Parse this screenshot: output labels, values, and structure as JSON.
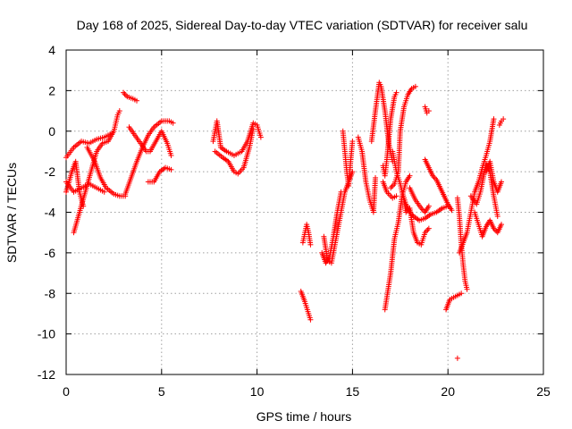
{
  "chart_data": {
    "type": "scatter",
    "title": "Day 168 of 2025, Sidereal Day-to-day VTEC variation (SDTVAR) for receiver salu",
    "xlabel": "GPS time / hours",
    "ylabel": "SDTVAR / TECUs",
    "xlim": [
      0,
      25
    ],
    "ylim": [
      -12,
      4
    ],
    "xticks": [
      "0",
      "5",
      "10",
      "15",
      "20",
      "25"
    ],
    "yticks": [
      "4",
      "2",
      "0",
      "-2",
      "-4",
      "-6",
      "-8",
      "-10",
      "-12"
    ],
    "grid": true,
    "marker": "+",
    "color": "#ff0000",
    "segments": [
      [
        [
          0.0,
          -1.3
        ],
        [
          0.4,
          -0.8
        ],
        [
          0.8,
          -0.5
        ],
        [
          1.2,
          -0.6
        ],
        [
          1.6,
          -0.4
        ],
        [
          2.0,
          -0.3
        ],
        [
          2.4,
          -0.1
        ]
      ],
      [
        [
          0.0,
          -2.5
        ],
        [
          0.4,
          -3.0
        ],
        [
          0.8,
          -2.8
        ],
        [
          1.2,
          -2.6
        ],
        [
          1.6,
          -2.8
        ],
        [
          2.0,
          -3.0
        ]
      ],
      [
        [
          0.0,
          -3.0
        ],
        [
          0.3,
          -2.0
        ],
        [
          0.5,
          -1.5
        ],
        [
          0.7,
          -3.0
        ],
        [
          0.9,
          -3.7
        ]
      ],
      [
        [
          0.4,
          -5.0
        ],
        [
          0.7,
          -4.0
        ],
        [
          1.0,
          -3.0
        ],
        [
          1.3,
          -2.0
        ],
        [
          1.6,
          -1.0
        ],
        [
          1.9,
          -0.6
        ],
        [
          2.2,
          -0.5
        ],
        [
          2.5,
          0.0
        ],
        [
          2.7,
          0.8
        ],
        [
          2.8,
          1.0
        ]
      ],
      [
        [
          1.1,
          -0.8
        ],
        [
          1.5,
          -1.5
        ],
        [
          1.8,
          -2.3
        ],
        [
          2.1,
          -2.8
        ],
        [
          2.5,
          -3.1
        ],
        [
          2.8,
          -3.2
        ],
        [
          3.1,
          -3.2
        ]
      ],
      [
        [
          3.0,
          1.9
        ],
        [
          3.2,
          1.7
        ],
        [
          3.5,
          1.6
        ],
        [
          3.7,
          1.5
        ]
      ],
      [
        [
          3.1,
          -3.1
        ],
        [
          3.4,
          -2.3
        ],
        [
          3.7,
          -1.5
        ],
        [
          4.0,
          -0.8
        ],
        [
          4.3,
          -0.2
        ],
        [
          4.6,
          0.2
        ],
        [
          5.0,
          0.5
        ],
        [
          5.4,
          0.5
        ],
        [
          5.6,
          0.4
        ]
      ],
      [
        [
          3.3,
          0.2
        ],
        [
          3.6,
          -0.2
        ],
        [
          3.9,
          -0.6
        ],
        [
          4.2,
          -1.0
        ],
        [
          4.4,
          -1.0
        ],
        [
          4.7,
          -0.5
        ],
        [
          5.0,
          0.0
        ],
        [
          5.3,
          -0.6
        ],
        [
          5.5,
          -1.2
        ]
      ],
      [
        [
          4.3,
          -2.5
        ],
        [
          4.6,
          -2.5
        ],
        [
          4.9,
          -2.0
        ],
        [
          5.2,
          -1.8
        ],
        [
          5.5,
          -1.9
        ]
      ],
      [
        [
          7.7,
          -0.5
        ],
        [
          7.9,
          0.5
        ],
        [
          8.1,
          -0.8
        ],
        [
          8.4,
          -1.0
        ],
        [
          8.8,
          -1.2
        ],
        [
          9.2,
          -1.0
        ],
        [
          9.5,
          -0.5
        ],
        [
          9.8,
          0.4
        ],
        [
          10.0,
          0.3
        ],
        [
          10.2,
          -0.3
        ]
      ],
      [
        [
          7.8,
          -1.0
        ],
        [
          8.2,
          -1.3
        ],
        [
          8.5,
          -1.5
        ],
        [
          8.8,
          -2.0
        ],
        [
          9.0,
          -2.1
        ],
        [
          9.3,
          -1.8
        ],
        [
          9.6,
          -0.8
        ],
        [
          9.8,
          0.1
        ]
      ],
      [
        [
          12.4,
          -5.5
        ],
        [
          12.6,
          -4.6
        ],
        [
          12.7,
          -5.0
        ],
        [
          12.8,
          -5.6
        ]
      ],
      [
        [
          12.3,
          -7.9
        ],
        [
          12.5,
          -8.4
        ],
        [
          12.7,
          -9.0
        ],
        [
          12.8,
          -9.3
        ]
      ],
      [
        [
          13.5,
          -5.2
        ],
        [
          13.7,
          -6.4
        ],
        [
          13.9,
          -6.5
        ],
        [
          14.0,
          -6.0
        ],
        [
          14.2,
          -5.0
        ],
        [
          14.4,
          -4.0
        ],
        [
          14.6,
          -3.0
        ],
        [
          14.8,
          -2.5
        ],
        [
          15.0,
          -2.0
        ]
      ],
      [
        [
          13.4,
          -6.0
        ],
        [
          13.6,
          -6.5
        ],
        [
          13.8,
          -6.2
        ],
        [
          14.0,
          -5.2
        ],
        [
          14.2,
          -4.0
        ],
        [
          14.4,
          -3.0
        ]
      ],
      [
        [
          14.5,
          0.0
        ],
        [
          14.6,
          -1.0
        ],
        [
          14.7,
          -2.0
        ],
        [
          14.8,
          -2.7
        ],
        [
          14.9,
          -1.5
        ],
        [
          15.0,
          -0.5
        ]
      ],
      [
        [
          15.3,
          -0.3
        ],
        [
          15.5,
          -1.0
        ],
        [
          15.7,
          -2.5
        ],
        [
          15.9,
          -3.4
        ],
        [
          16.1,
          -4.0
        ],
        [
          16.2,
          -2.3
        ]
      ],
      [
        [
          16.0,
          -0.5
        ],
        [
          16.2,
          1.0
        ],
        [
          16.4,
          2.4
        ],
        [
          16.5,
          2.2
        ],
        [
          16.7,
          1.0
        ],
        [
          16.9,
          -0.6
        ],
        [
          17.1,
          -1.5
        ]
      ],
      [
        [
          16.6,
          -1.7
        ],
        [
          16.7,
          -2.2
        ],
        [
          16.8,
          -1.4
        ],
        [
          17.0,
          0.6
        ],
        [
          17.2,
          1.7
        ],
        [
          17.3,
          1.9
        ]
      ],
      [
        [
          16.6,
          -2.5
        ],
        [
          16.8,
          -3.0
        ],
        [
          17.1,
          -3.3
        ],
        [
          17.3,
          -3.2
        ]
      ],
      [
        [
          16.7,
          -8.8
        ],
        [
          17.0,
          -7.0
        ],
        [
          17.2,
          -5.3
        ],
        [
          17.4,
          -4.5
        ],
        [
          17.6,
          -3.2
        ],
        [
          17.8,
          -2.5
        ],
        [
          18.0,
          -2.2
        ]
      ],
      [
        [
          17.0,
          -2.8
        ],
        [
          17.2,
          -2.6
        ],
        [
          17.4,
          -2.0
        ],
        [
          17.5,
          0.0
        ],
        [
          17.7,
          1.2
        ],
        [
          17.9,
          1.8
        ],
        [
          18.1,
          2.1
        ],
        [
          18.3,
          2.2
        ]
      ],
      [
        [
          17.1,
          -1.0
        ],
        [
          17.3,
          -2.0
        ],
        [
          17.5,
          -2.6
        ],
        [
          17.7,
          -3.4
        ],
        [
          17.8,
          -4.0
        ],
        [
          18.0,
          -3.8
        ],
        [
          18.2,
          -5.0
        ],
        [
          18.4,
          -5.5
        ],
        [
          18.6,
          -5.6
        ],
        [
          18.8,
          -5.0
        ],
        [
          19.0,
          -4.8
        ]
      ],
      [
        [
          17.6,
          -3.0
        ],
        [
          17.8,
          -3.6
        ],
        [
          18.0,
          -4.0
        ],
        [
          18.2,
          -4.2
        ],
        [
          18.5,
          -4.4
        ],
        [
          18.8,
          -4.3
        ],
        [
          19.1,
          -4.1
        ],
        [
          19.4,
          -4.0
        ],
        [
          19.7,
          -3.8
        ],
        [
          20.0,
          -3.7
        ]
      ],
      [
        [
          18.0,
          -2.8
        ],
        [
          18.3,
          -3.4
        ],
        [
          18.6,
          -3.8
        ],
        [
          18.8,
          -4.0
        ],
        [
          19.0,
          -3.7
        ]
      ],
      [
        [
          18.8,
          1.2
        ],
        [
          18.9,
          0.9
        ],
        [
          19.0,
          1.0
        ]
      ],
      [
        [
          18.8,
          -1.4
        ],
        [
          19.0,
          -1.8
        ],
        [
          19.2,
          -2.2
        ],
        [
          19.4,
          -2.4
        ],
        [
          19.6,
          -2.8
        ],
        [
          19.8,
          -3.2
        ],
        [
          20.0,
          -3.6
        ],
        [
          20.2,
          -3.9
        ]
      ],
      [
        [
          19.9,
          -8.8
        ],
        [
          20.1,
          -8.3
        ],
        [
          20.3,
          -8.2
        ],
        [
          20.5,
          -8.1
        ],
        [
          20.7,
          -8.0
        ]
      ],
      [
        [
          20.5,
          -3.3
        ],
        [
          20.6,
          -4.2
        ],
        [
          20.7,
          -5.6
        ],
        [
          20.8,
          -6.6
        ],
        [
          20.9,
          -7.4
        ],
        [
          21.0,
          -7.8
        ]
      ],
      [
        [
          20.6,
          -6.0
        ],
        [
          20.8,
          -5.5
        ],
        [
          21.0,
          -5.0
        ],
        [
          21.2,
          -4.0
        ],
        [
          21.4,
          -3.0
        ],
        [
          21.6,
          -2.5
        ],
        [
          21.8,
          -1.8
        ],
        [
          22.0,
          -1.2
        ],
        [
          22.2,
          -0.5
        ],
        [
          22.4,
          0.6
        ]
      ],
      [
        [
          21.2,
          -3.2
        ],
        [
          21.5,
          -3.6
        ],
        [
          21.7,
          -3.0
        ],
        [
          22.0,
          -1.6
        ],
        [
          22.2,
          -2.0
        ],
        [
          22.4,
          -3.2
        ],
        [
          22.6,
          -4.2
        ]
      ],
      [
        [
          21.4,
          -4.0
        ],
        [
          21.6,
          -4.6
        ],
        [
          21.8,
          -5.2
        ],
        [
          22.0,
          -4.7
        ],
        [
          22.2,
          -4.4
        ],
        [
          22.4,
          -4.8
        ],
        [
          22.6,
          -5.0
        ],
        [
          22.8,
          -4.6
        ]
      ],
      [
        [
          22.0,
          -2.0
        ],
        [
          22.2,
          -1.5
        ],
        [
          22.4,
          -2.5
        ],
        [
          22.6,
          -3.0
        ],
        [
          22.8,
          -2.5
        ]
      ],
      [
        [
          22.7,
          0.3
        ],
        [
          22.8,
          0.5
        ],
        [
          22.9,
          0.6
        ]
      ],
      [
        [
          20.5,
          -11.2
        ]
      ]
    ]
  }
}
